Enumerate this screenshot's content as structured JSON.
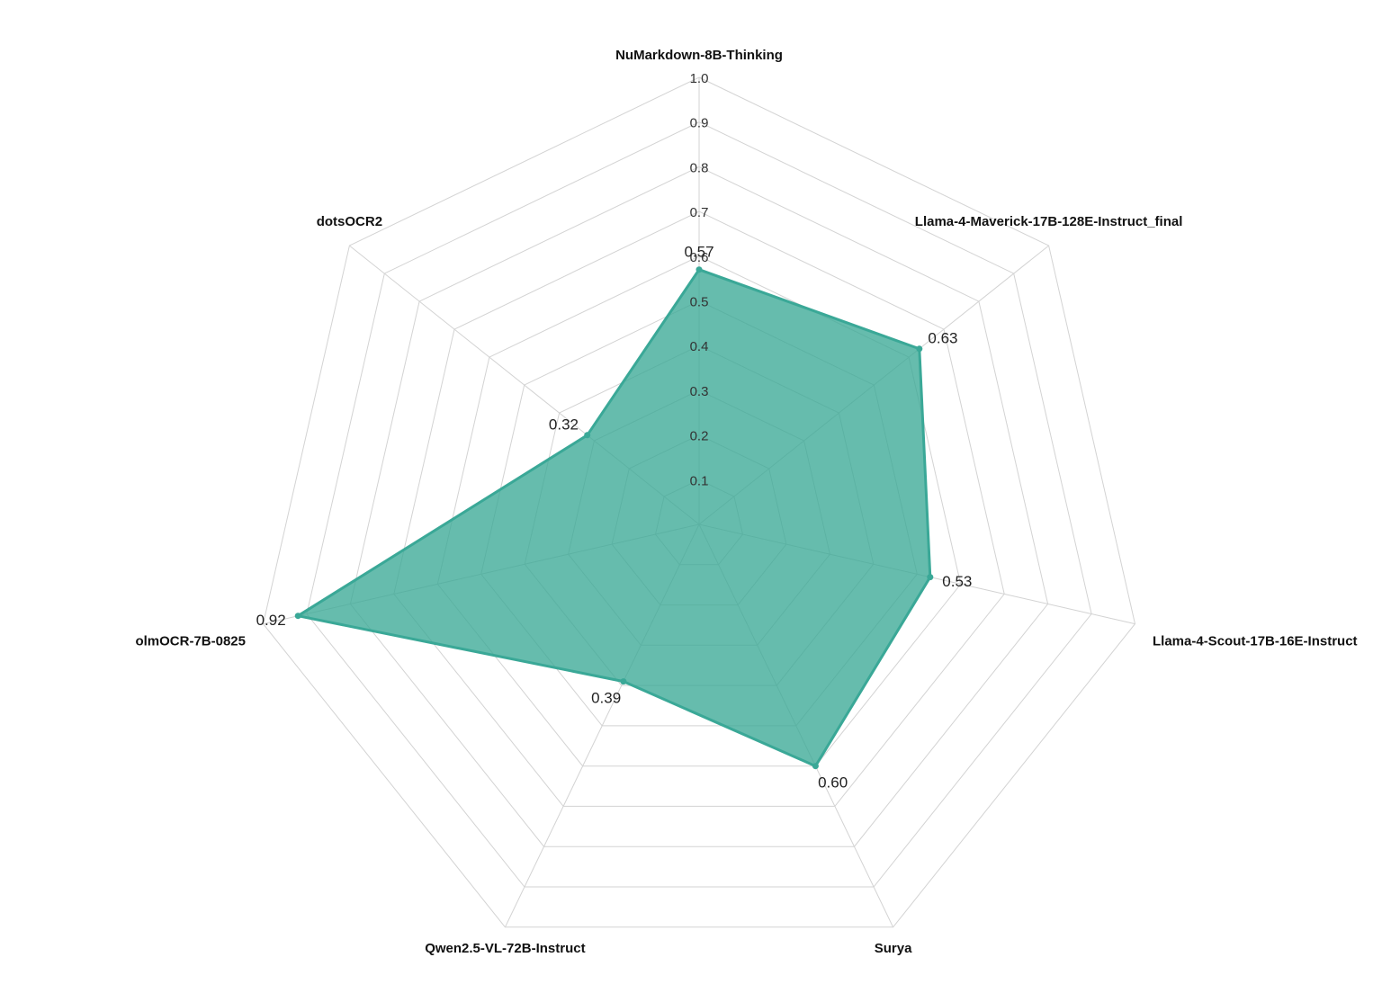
{
  "chart_data": {
    "type": "radar",
    "axes": [
      "NuMarkdown-8B-Thinking",
      "Llama-4-Maverick-17B-128E-Instruct_final",
      "Llama-4-Scout-17B-16E-Instruct",
      "Surya",
      "Qwen2.5-VL-72B-Instruct",
      "olmOCR-7B-0825",
      "dotsOCR2"
    ],
    "values": [
      0.57,
      0.63,
      0.53,
      0.6,
      0.39,
      0.92,
      0.32
    ],
    "value_labels": [
      "0.57",
      "0.63",
      "0.53",
      "0.60",
      "0.39",
      "0.92",
      "0.32"
    ],
    "radial_range": [
      0,
      1.0
    ],
    "radial_ticks": [
      "0.1",
      "0.2",
      "0.3",
      "0.4",
      "0.5",
      "0.6",
      "0.7",
      "0.8",
      "0.9",
      "1.0"
    ],
    "grid": true,
    "legend": "none",
    "colors": {
      "fill": "#3ba996",
      "stroke": "#3aa897",
      "grid": "#d3d3d3"
    }
  }
}
